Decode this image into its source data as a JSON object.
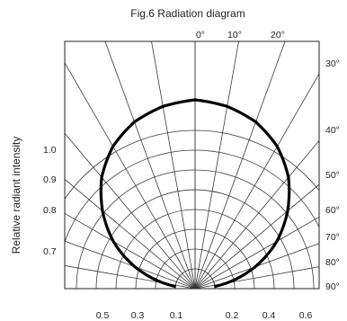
{
  "chart_data": {
    "type": "polar-radiation",
    "title": "Fig.6 Radiation diagram",
    "ylabel": "Relative radiant intensity",
    "angle_labels_top": [
      "0°",
      "10°",
      "20°"
    ],
    "angle_labels_right": [
      "30°",
      "40°",
      "50°",
      "60°",
      "70°",
      "80°",
      "90°"
    ],
    "intensity_ticks_left": [
      "1.0",
      "0.9",
      "0.8",
      "0.7"
    ],
    "bottom_ticks_left": [
      "0.5",
      "0.3",
      "0.1"
    ],
    "bottom_ticks_right": [
      "0.2",
      "0.4",
      "0.6"
    ],
    "angles_deg": [
      0,
      10,
      20,
      30,
      40,
      50,
      60,
      70,
      80,
      90
    ],
    "intensity": [
      1.0,
      0.98,
      0.94,
      0.87,
      0.77,
      0.64,
      0.5,
      0.34,
      0.17,
      0.0
    ]
  }
}
